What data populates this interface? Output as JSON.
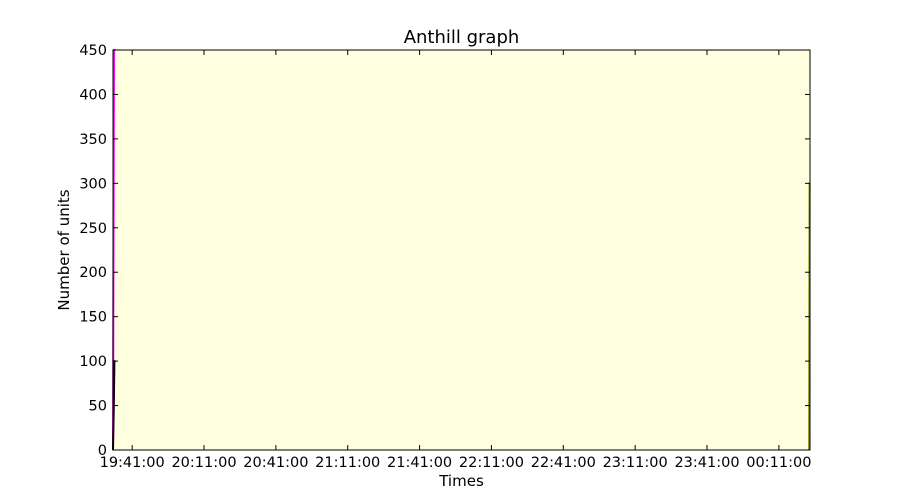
{
  "chart_data": {
    "type": "line",
    "title": "Anthill graph",
    "xlabel": "Times",
    "ylabel": "Number of units",
    "ylim": [
      0,
      450
    ],
    "xlim": [
      "19:33:00",
      "00:24:00"
    ],
    "yticks": [
      0,
      50,
      100,
      150,
      200,
      250,
      300,
      350,
      400,
      450
    ],
    "xticks": [
      "19:41:00",
      "20:11:00",
      "20:41:00",
      "21:11:00",
      "21:41:00",
      "22:11:00",
      "22:41:00",
      "23:11:00",
      "23:41:00",
      "00:11:00"
    ],
    "grid": false,
    "legend": "none",
    "plot_background": "#ffffe0",
    "series": [
      {
        "color": "#ff00ff",
        "points": [
          [
            "19:33:00",
            0
          ],
          [
            "19:33:25",
            450
          ],
          [
            "19:34:00",
            450
          ]
        ]
      },
      {
        "color": "#000000",
        "points": [
          [
            "19:33:00",
            0
          ],
          [
            "19:33:20",
            50
          ],
          [
            "19:33:35",
            100
          ],
          [
            "19:34:00",
            100
          ]
        ]
      },
      {
        "color": "#808000",
        "points": [
          [
            "00:23:40",
            0
          ],
          [
            "00:23:50",
            300
          ],
          [
            "00:24:00",
            300
          ]
        ]
      }
    ]
  }
}
